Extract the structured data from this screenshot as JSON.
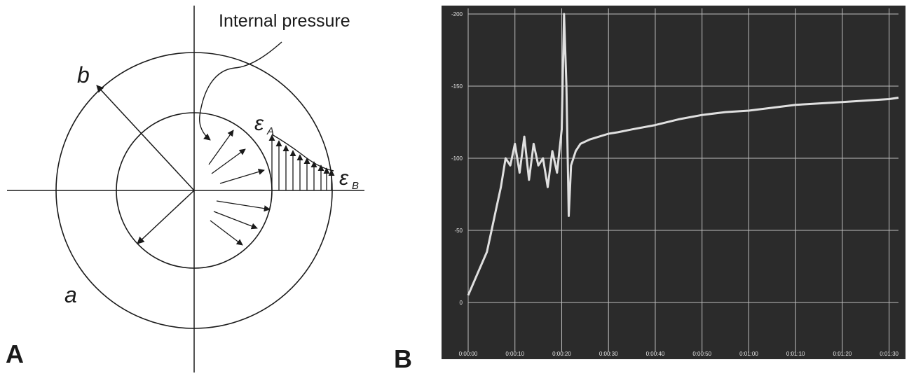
{
  "panel_a": {
    "panel_label": "A",
    "pressure_label": "Internal pressure",
    "outer_radius_label": "b",
    "inner_label": "a",
    "strain_a_symbol": "ε",
    "strain_a_sub": "A",
    "strain_b_symbol": "ε",
    "strain_b_sub": "B"
  },
  "panel_b": {
    "panel_label": "B"
  },
  "chart_data": {
    "type": "line",
    "title": "",
    "xlabel": "",
    "ylabel": "",
    "x_ticks": [
      "0:00:00",
      "0:00:10",
      "0:00:20",
      "0:00:30",
      "0:00:40",
      "0:00:50",
      "0:01:00",
      "0:01:10",
      "0:01:20",
      "0:01:30"
    ],
    "y_ticks": [
      "0",
      "-50",
      "-100",
      "-150",
      "-200"
    ],
    "ylim": [
      0,
      -200
    ],
    "xlim_seconds": [
      0,
      92
    ],
    "grid": true,
    "background": "#2a2a2a",
    "line_color": "#e0e0e0",
    "series": [
      {
        "x": [
          0,
          2,
          4,
          5,
          6,
          7,
          8,
          9,
          10,
          11,
          12,
          13,
          14,
          15,
          16,
          17,
          18,
          19,
          20,
          20.5,
          21,
          21.5,
          22,
          23,
          24,
          26,
          28,
          30,
          32,
          35,
          40,
          45,
          50,
          55,
          60,
          65,
          70,
          75,
          80,
          85,
          90,
          92
        ],
        "y": [
          -5,
          -20,
          -35,
          -50,
          -65,
          -80,
          -100,
          -95,
          -110,
          -90,
          -115,
          -85,
          -110,
          -95,
          -100,
          -80,
          -105,
          -90,
          -120,
          -200,
          -150,
          -60,
          -95,
          -105,
          -110,
          -113,
          -115,
          -117,
          -118,
          -120,
          -123,
          -127,
          -130,
          -132,
          -133,
          -135,
          -137,
          -138,
          -139,
          -140,
          -141,
          -142
        ]
      }
    ]
  }
}
